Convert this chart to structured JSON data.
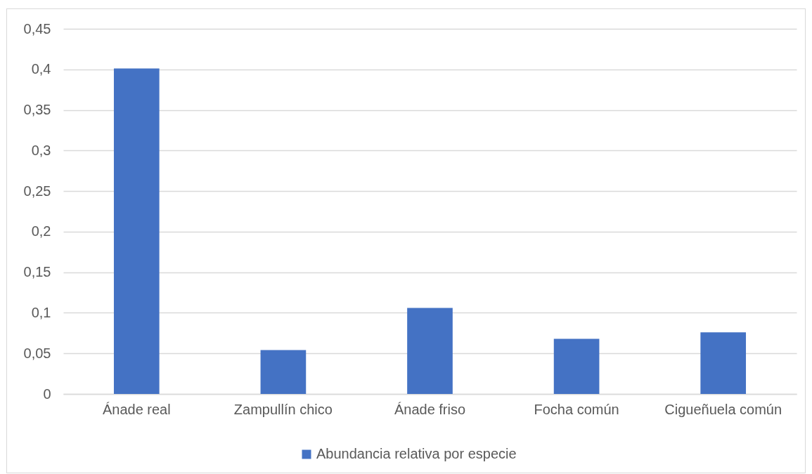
{
  "chart_data": {
    "type": "bar",
    "categories": [
      "Ánade real",
      "Zampullín chico",
      "Ánade friso",
      "Focha común",
      "Cigueñuela común"
    ],
    "series": [
      {
        "name": "Abundancia relativa por especie",
        "color": "#4472c4",
        "values": [
          0.401,
          0.054,
          0.106,
          0.068,
          0.076
        ]
      }
    ],
    "ylim": [
      0,
      0.45
    ],
    "yticks": [
      0,
      {
        "value": 0.05,
        "label": "0,05"
      },
      {
        "value": 0.1,
        "label": "0,1"
      },
      {
        "value": 0.15,
        "label": "0,15"
      },
      {
        "value": 0.2,
        "label": "0,2"
      },
      {
        "value": 0.25,
        "label": "0,25"
      },
      {
        "value": 0.3,
        "label": "0,3"
      },
      {
        "value": 0.35,
        "label": "0,35"
      },
      {
        "value": 0.4,
        "label": "0,4"
      },
      {
        "value": 0.45,
        "label": "0,45"
      }
    ],
    "grid": "y",
    "legend": "bottom"
  }
}
